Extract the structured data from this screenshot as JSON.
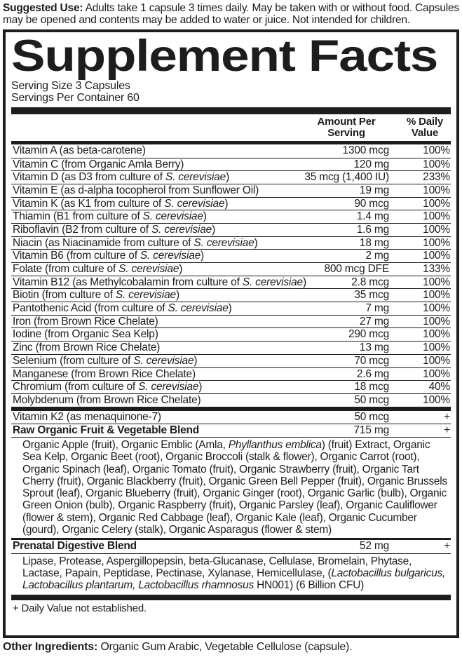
{
  "colors": {
    "ink": "#1d1d1b",
    "background": "#ffffff"
  },
  "suggested_use": {
    "label": "Suggested Use:",
    "text": " Adults take 1 capsule 3 times daily. May be taken with or without food. Capsules may be opened and contents may be added to water or juice. Not intended for children."
  },
  "panel": {
    "title": "Supplement Facts",
    "serving_size": "Serving Size 3 Capsules",
    "servings_per_container": "Servings Per Container 60",
    "columns": {
      "amount": "Amount Per Serving",
      "daily_value": "% Daily Value"
    },
    "rows": [
      {
        "name": [
          {
            "t": "Vitamin A (as beta-carotene)"
          }
        ],
        "amount": "1300 mcg",
        "dv": "100%"
      },
      {
        "name": [
          {
            "t": "Vitamin C (from Organic Amla Berry)"
          }
        ],
        "amount": "120 mg",
        "dv": "100%"
      },
      {
        "name": [
          {
            "t": "Vitamin D (as D3 from culture of "
          },
          {
            "i": "S. cerevisiae"
          },
          {
            "t": ")"
          }
        ],
        "amount": "35 mcg (1,400 IU)",
        "dv": "233%"
      },
      {
        "name": [
          {
            "t": "Vitamin E (as d-alpha tocopherol from Sunflower Oil)"
          }
        ],
        "amount": "19 mg",
        "dv": "100%"
      },
      {
        "name": [
          {
            "t": "Vitamin K (as K1 from culture of "
          },
          {
            "i": "S. cerevisiae"
          },
          {
            "t": ")"
          }
        ],
        "amount": "90 mcg",
        "dv": "100%"
      },
      {
        "name": [
          {
            "t": "Thiamin (B1 from culture of "
          },
          {
            "i": "S. cerevisiae"
          },
          {
            "t": ")"
          }
        ],
        "amount": "1.4 mg",
        "dv": "100%"
      },
      {
        "name": [
          {
            "t": "Riboflavin (B2 from culture of "
          },
          {
            "i": "S. cerevisiae"
          },
          {
            "t": ")"
          }
        ],
        "amount": "1.6 mg",
        "dv": "100%"
      },
      {
        "name": [
          {
            "t": "Niacin (as Niacinamide from culture of "
          },
          {
            "i": "S. cerevisiae"
          },
          {
            "t": ")"
          }
        ],
        "amount": "18 mg",
        "dv": "100%"
      },
      {
        "name": [
          {
            "t": "Vitamin B6 (from culture of "
          },
          {
            "i": "S. cerevisiae"
          },
          {
            "t": ")"
          }
        ],
        "amount": "2 mg",
        "dv": "100%"
      },
      {
        "name": [
          {
            "t": "Folate (from culture of "
          },
          {
            "i": "S. cerevisiae"
          },
          {
            "t": ")"
          }
        ],
        "amount": "800 mcg DFE",
        "dv": "133%"
      },
      {
        "name": [
          {
            "t": "Vitamin B12 (as Methylcobalamin from culture of "
          },
          {
            "i": "S. cerevisiae"
          },
          {
            "t": ")"
          }
        ],
        "amount": "2.8 mcg",
        "dv": "100%"
      },
      {
        "name": [
          {
            "t": "Biotin (from culture of "
          },
          {
            "i": "S. cerevisiae"
          },
          {
            "t": ")"
          }
        ],
        "amount": "35 mcg",
        "dv": "100%"
      },
      {
        "name": [
          {
            "t": "Pantothenic Acid (from culture of "
          },
          {
            "i": "S. cerevisiae"
          },
          {
            "t": ")"
          }
        ],
        "amount": "7 mg",
        "dv": "100%"
      },
      {
        "name": [
          {
            "t": "Iron (from Brown Rice Chelate)"
          }
        ],
        "amount": "27 mg",
        "dv": "100%"
      },
      {
        "name": [
          {
            "t": "Iodine (from Organic Sea Kelp)"
          }
        ],
        "amount": "290 mcg",
        "dv": "100%"
      },
      {
        "name": [
          {
            "t": "Zinc (from Brown Rice Chelate)"
          }
        ],
        "amount": "13 mg",
        "dv": "100%"
      },
      {
        "name": [
          {
            "t": "Selenium (from culture of "
          },
          {
            "i": "S. cerevisiae"
          },
          {
            "t": ")"
          }
        ],
        "amount": "70 mcg",
        "dv": "100%"
      },
      {
        "name": [
          {
            "t": "Manganese (from Brown Rice Chelate)"
          }
        ],
        "amount": "2.6 mg",
        "dv": "100%"
      },
      {
        "name": [
          {
            "t": "Chromium (from culture of "
          },
          {
            "i": "S. cerevisiae"
          },
          {
            "t": ")"
          }
        ],
        "amount": "18 mcg",
        "dv": "40%"
      },
      {
        "name": [
          {
            "t": "Molybdenum (from Brown Rice Chelate)"
          }
        ],
        "amount": "50 mcg",
        "dv": "100%"
      }
    ],
    "sub_rows_a": [
      {
        "name": [
          {
            "t": "Vitamin K2 (as menaquinone-7)"
          }
        ],
        "amount": "50 mcg",
        "dv": "+"
      },
      {
        "name": [
          {
            "t": "Raw Organic Fruit & Vegetable Blend"
          }
        ],
        "amount": "715 mg",
        "dv": "+",
        "bold": true
      }
    ],
    "fruit_blend_ingredients": [
      {
        "t": "Organic Apple (fruit), Organic Emblic (Amla, "
      },
      {
        "i": "Phyllanthus emblica"
      },
      {
        "t": ") (fruit) Extract, Organic Sea Kelp, Organic Beet (root), Organic Broccoli (stalk & flower), Organic Carrot (root), Organic Spinach (leaf), Organic Tomato (fruit), Organic Strawberry (fruit), Organic Tart Cherry (fruit), Organic Blackberry (fruit), Organic Green Bell Pepper (fruit), Organic Brussels Sprout (leaf), Organic Blueberry (fruit), Organic Ginger (root), Organic Garlic (bulb), Organic Green Onion (bulb), Organic Raspberry (fruit), Organic Parsley (leaf), Organic Cauliflower (flower & stem), Organic Red Cabbage (leaf), Organic Kale (leaf), Organic Cucumber (gourd), Organic Celery (stalk), Organic Asparagus (flower & stem)"
      }
    ],
    "sub_rows_b": [
      {
        "name": [
          {
            "t": "Prenatal Digestive Blend"
          }
        ],
        "amount": "52 mg",
        "dv": "+",
        "bold": true
      }
    ],
    "digestive_blend_ingredients": [
      {
        "t": "Lipase, Protease, Aspergillopepsin, beta-Glucanase, Cellulase, Bromelain, Phytase, Lactase, Papain, Peptidase, Pectinase, Xylanase, Hemicellulase, ("
      },
      {
        "i": "Lactobacillus bulgaricus, Lactobacillus plantarum, Lactobacillus rhamnosus"
      },
      {
        "t": " HN001) (6 Billion CFU)"
      }
    ],
    "footnote": "+ Daily Value not established."
  },
  "other_ingredients": {
    "label": "Other Ingredients:",
    "text": " Organic Gum Arabic, Vegetable Cellulose (capsule)."
  }
}
